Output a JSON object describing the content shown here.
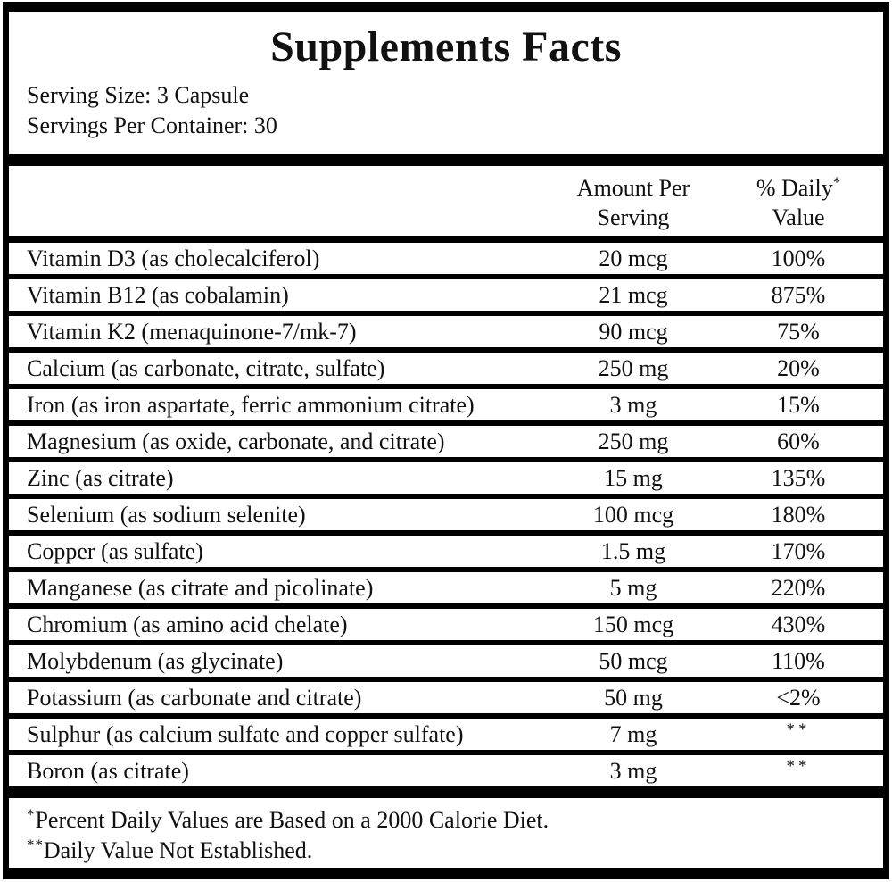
{
  "panel": {
    "title": "Supplements Facts",
    "serving_size": "Serving Size: 3 Capsule",
    "servings_per_container": "Servings Per Container: 30"
  },
  "table": {
    "headers": {
      "amount_line1": "Amount Per",
      "amount_line2": "Serving",
      "daily_line1": "% Daily",
      "daily_sup": "*",
      "daily_line2": "Value"
    },
    "rows": [
      {
        "name": "Vitamin D3 (as cholecalciferol)",
        "amount": "20 mcg",
        "daily_value": "100%"
      },
      {
        "name": "Vitamin B12 (as cobalamin)",
        "amount": "21 mcg",
        "daily_value": "875%"
      },
      {
        "name": "Vitamin K2 (menaquinone-7/mk-7)",
        "amount": "90 mcg",
        "daily_value": "75%"
      },
      {
        "name": "Calcium (as carbonate, citrate, sulfate)",
        "amount": "250 mg",
        "daily_value": "20%"
      },
      {
        "name": "Iron (as iron aspartate, ferric ammonium citrate)",
        "amount": "3 mg",
        "daily_value": "15%"
      },
      {
        "name": "Magnesium (as oxide, carbonate, and citrate)",
        "amount": "250 mg",
        "daily_value": "60%"
      },
      {
        "name": "Zinc (as citrate)",
        "amount": "15 mg",
        "daily_value": "135%"
      },
      {
        "name": "Selenium (as sodium selenite)",
        "amount": "100 mcg",
        "daily_value": "180%"
      },
      {
        "name": "Copper (as sulfate)",
        "amount": "1.5 mg",
        "daily_value": "170%"
      },
      {
        "name": "Manganese (as citrate and picolinate)",
        "amount": "5 mg",
        "daily_value": "220%"
      },
      {
        "name": "Chromium (as amino acid chelate)",
        "amount": "150 mcg",
        "daily_value": "430%"
      },
      {
        "name": "Molybdenum (as glycinate)",
        "amount": "50 mcg",
        "daily_value": "110%"
      },
      {
        "name": "Potassium (as carbonate and citrate)",
        "amount": "50 mg",
        "daily_value": "<2%"
      },
      {
        "name": "Sulphur (as calcium sulfate and copper sulfate)",
        "amount": "7 mg",
        "daily_value": "**"
      },
      {
        "name": "Boron (as citrate)",
        "amount": "3 mg",
        "daily_value": "**"
      }
    ]
  },
  "footnotes": [
    {
      "sup": "*",
      "text": "Percent Daily Values are Based on a 2000 Calorie Diet."
    },
    {
      "sup": "**",
      "text": "Daily Value Not Established."
    }
  ],
  "colors": {
    "text": "#111111",
    "bars": "#000000",
    "background": "#ffffff"
  }
}
